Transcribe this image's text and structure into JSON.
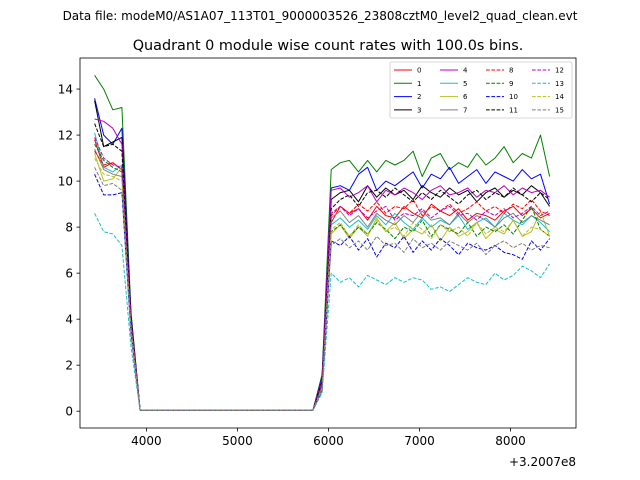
{
  "figure": {
    "suptitle": "Data file: modeM0/AS1A07_113T01_9000003526_23808cztM0_level2_quad_clean.evt"
  },
  "chart_data": {
    "type": "line",
    "title": "Quadrant 0 module wise count rates with 100.0s bins.",
    "xlabel": "",
    "ylabel": "",
    "x_offset_label": "+3.2007e8",
    "x_offset": 320070000,
    "xlim": [
      3270,
      8720
    ],
    "ylim": [
      -0.73,
      15.35
    ],
    "x_ticks": [
      4000,
      5000,
      6000,
      7000,
      8000
    ],
    "y_ticks": [
      0,
      2,
      4,
      6,
      8,
      10,
      12,
      14
    ],
    "grid": false,
    "legend_position": "top-right",
    "x": [
      3430,
      3530,
      3630,
      3730,
      3830,
      3930,
      4030,
      4130,
      4230,
      4330,
      4430,
      4530,
      4630,
      4730,
      4830,
      4930,
      5030,
      5130,
      5230,
      5330,
      5430,
      5530,
      5630,
      5730,
      5830,
      5930,
      6030,
      6130,
      6230,
      6330,
      6430,
      6530,
      6630,
      6730,
      6830,
      6930,
      7030,
      7130,
      7230,
      7330,
      7430,
      7530,
      7630,
      7730,
      7830,
      7930,
      8030,
      8130,
      8230,
      8330,
      8430
    ],
    "series": [
      {
        "name": "0",
        "color": "#ff0000",
        "dash": "solid",
        "values": [
          11.8,
          10.6,
          10.8,
          10.5,
          4.0,
          0.05,
          0.05,
          0.05,
          0.05,
          0.05,
          0.05,
          0.05,
          0.05,
          0.05,
          0.05,
          0.05,
          0.05,
          0.05,
          0.05,
          0.05,
          0.05,
          0.05,
          0.05,
          0.05,
          0.05,
          1.2,
          8.2,
          8.9,
          8.6,
          8.8,
          8.3,
          8.9,
          8.5,
          8.4,
          8.9,
          8.6,
          8.4,
          9.0,
          8.7,
          8.5,
          8.8,
          8.3,
          8.6,
          8.5,
          8.3,
          8.7,
          8.9,
          8.5,
          8.8,
          8.4,
          8.6
        ]
      },
      {
        "name": "1",
        "color": "#008000",
        "dash": "solid",
        "values": [
          14.6,
          14.0,
          13.1,
          13.2,
          4.3,
          0.05,
          0.05,
          0.05,
          0.05,
          0.05,
          0.05,
          0.05,
          0.05,
          0.05,
          0.05,
          0.05,
          0.05,
          0.05,
          0.05,
          0.05,
          0.05,
          0.05,
          0.05,
          0.05,
          0.05,
          1.6,
          10.5,
          10.8,
          10.9,
          10.4,
          10.9,
          10.4,
          10.9,
          10.7,
          10.9,
          11.3,
          10.2,
          11.0,
          11.2,
          10.5,
          10.8,
          10.6,
          11.2,
          10.7,
          11.0,
          11.5,
          10.8,
          11.2,
          11.0,
          12.0,
          10.2
        ]
      },
      {
        "name": "2",
        "color": "#0000ff",
        "dash": "solid",
        "values": [
          13.6,
          12.0,
          11.6,
          12.3,
          4.2,
          0.05,
          0.05,
          0.05,
          0.05,
          0.05,
          0.05,
          0.05,
          0.05,
          0.05,
          0.05,
          0.05,
          0.05,
          0.05,
          0.05,
          0.05,
          0.05,
          0.05,
          0.05,
          0.05,
          0.05,
          1.5,
          9.7,
          9.8,
          9.6,
          10.3,
          10.6,
          9.6,
          10.0,
          9.8,
          10.1,
          10.4,
          9.7,
          10.3,
          10.1,
          10.6,
          9.9,
          10.2,
          10.5,
          9.9,
          10.4,
          10.2,
          10.0,
          10.5,
          10.1,
          10.3,
          9.0
        ]
      },
      {
        "name": "3",
        "color": "#000000",
        "dash": "solid",
        "values": [
          13.5,
          11.5,
          11.7,
          11.9,
          4.1,
          0.05,
          0.05,
          0.05,
          0.05,
          0.05,
          0.05,
          0.05,
          0.05,
          0.05,
          0.05,
          0.05,
          0.05,
          0.05,
          0.05,
          0.05,
          0.05,
          0.05,
          0.05,
          0.05,
          0.05,
          1.4,
          9.2,
          9.5,
          9.6,
          9.1,
          9.8,
          9.3,
          9.7,
          9.4,
          9.6,
          9.2,
          9.8,
          9.5,
          9.3,
          9.7,
          9.4,
          9.6,
          9.1,
          9.5,
          9.7,
          9.3,
          9.6,
          9.4,
          9.8,
          9.5,
          8.9
        ]
      },
      {
        "name": "4",
        "color": "#bf00bf",
        "dash": "solid",
        "values": [
          12.7,
          12.6,
          12.3,
          11.6,
          4.0,
          0.05,
          0.05,
          0.05,
          0.05,
          0.05,
          0.05,
          0.05,
          0.05,
          0.05,
          0.05,
          0.05,
          0.05,
          0.05,
          0.05,
          0.05,
          0.05,
          0.05,
          0.05,
          0.05,
          0.05,
          1.4,
          9.6,
          9.7,
          9.3,
          9.5,
          9.8,
          9.1,
          9.6,
          9.4,
          9.7,
          9.5,
          9.2,
          9.6,
          9.8,
          9.4,
          9.5,
          9.7,
          9.3,
          9.6,
          9.5,
          9.8,
          9.4,
          9.7,
          9.5,
          9.6,
          9.3
        ]
      },
      {
        "name": "5",
        "color": "#17becf",
        "dash": "solid",
        "values": [
          12.1,
          10.6,
          10.4,
          10.7,
          3.7,
          0.05,
          0.05,
          0.05,
          0.05,
          0.05,
          0.05,
          0.05,
          0.05,
          0.05,
          0.05,
          0.05,
          0.05,
          0.05,
          0.05,
          0.05,
          0.05,
          0.05,
          0.05,
          0.05,
          0.05,
          1.1,
          8.1,
          8.4,
          8.0,
          8.3,
          7.9,
          8.5,
          8.1,
          8.6,
          8.2,
          7.9,
          8.4,
          8.0,
          8.3,
          8.1,
          8.5,
          7.9,
          8.2,
          8.4,
          8.0,
          8.6,
          8.3,
          8.1,
          8.5,
          8.2,
          7.8
        ]
      },
      {
        "name": "6",
        "color": "#bcbd22",
        "dash": "solid",
        "values": [
          11.2,
          10.0,
          10.1,
          10.6,
          3.6,
          0.05,
          0.05,
          0.05,
          0.05,
          0.05,
          0.05,
          0.05,
          0.05,
          0.05,
          0.05,
          0.05,
          0.05,
          0.05,
          0.05,
          0.05,
          0.05,
          0.05,
          0.05,
          0.05,
          0.05,
          1.0,
          7.7,
          8.1,
          7.5,
          8.0,
          7.6,
          8.4,
          7.8,
          8.2,
          7.5,
          7.9,
          7.7,
          8.1,
          7.4,
          8.0,
          7.6,
          7.8,
          8.2,
          7.5,
          7.9,
          7.7,
          8.3,
          7.6,
          7.8,
          8.7,
          7.6
        ]
      },
      {
        "name": "7",
        "color": "#7f7f7f",
        "dash": "solid",
        "values": [
          11.4,
          10.5,
          10.3,
          10.2,
          3.6,
          0.05,
          0.05,
          0.05,
          0.05,
          0.05,
          0.05,
          0.05,
          0.05,
          0.05,
          0.05,
          0.05,
          0.05,
          0.05,
          0.05,
          0.05,
          0.05,
          0.05,
          0.05,
          0.05,
          0.05,
          1.0,
          8.4,
          8.7,
          8.2,
          8.5,
          8.0,
          8.6,
          8.3,
          8.1,
          8.5,
          8.2,
          8.7,
          8.3,
          8.4,
          8.1,
          8.6,
          8.2,
          8.5,
          8.3,
          8.0,
          8.4,
          8.6,
          8.2,
          8.5,
          8.3,
          8.1
        ]
      },
      {
        "name": "8",
        "color": "#ff0000",
        "dash": "dashed",
        "values": [
          11.3,
          10.7,
          10.8,
          10.5,
          3.9,
          0.05,
          0.05,
          0.05,
          0.05,
          0.05,
          0.05,
          0.05,
          0.05,
          0.05,
          0.05,
          0.05,
          0.05,
          0.05,
          0.05,
          0.05,
          0.05,
          0.05,
          0.05,
          0.05,
          0.05,
          1.3,
          8.5,
          8.9,
          8.6,
          9.0,
          8.7,
          9.1,
          8.6,
          8.9,
          8.8,
          9.2,
          8.5,
          8.9,
          8.7,
          9.0,
          8.6,
          8.8,
          9.1,
          8.7,
          8.9,
          8.6,
          9.0,
          8.8,
          9.2,
          8.7,
          8.5
        ]
      },
      {
        "name": "9",
        "color": "#008000",
        "dash": "dashed",
        "values": [
          11.6,
          10.9,
          10.6,
          10.4,
          3.8,
          0.05,
          0.05,
          0.05,
          0.05,
          0.05,
          0.05,
          0.05,
          0.05,
          0.05,
          0.05,
          0.05,
          0.05,
          0.05,
          0.05,
          0.05,
          0.05,
          0.05,
          0.05,
          0.05,
          0.05,
          1.1,
          7.8,
          8.1,
          7.6,
          8.0,
          7.7,
          8.2,
          7.9,
          7.5,
          8.0,
          7.8,
          8.3,
          7.6,
          8.1,
          7.9,
          7.7,
          8.2,
          7.6,
          8.0,
          7.8,
          8.1,
          7.7,
          8.3,
          8.9,
          7.9,
          7.6
        ]
      },
      {
        "name": "10",
        "color": "#0000ff",
        "dash": "dashed",
        "values": [
          10.3,
          9.4,
          9.4,
          9.5,
          3.4,
          0.05,
          0.05,
          0.05,
          0.05,
          0.05,
          0.05,
          0.05,
          0.05,
          0.05,
          0.05,
          0.05,
          0.05,
          0.05,
          0.05,
          0.05,
          0.05,
          0.05,
          0.05,
          0.05,
          0.05,
          0.9,
          7.4,
          7.2,
          7.6,
          7.0,
          7.5,
          6.7,
          7.3,
          7.1,
          7.6,
          6.9,
          7.4,
          7.0,
          7.5,
          7.2,
          6.8,
          7.3,
          7.1,
          7.0,
          7.2,
          6.9,
          6.8,
          6.6,
          7.4,
          7.0,
          7.5
        ]
      },
      {
        "name": "11",
        "color": "#000000",
        "dash": "dashed",
        "values": [
          12.5,
          11.5,
          11.6,
          11.3,
          4.0,
          0.05,
          0.05,
          0.05,
          0.05,
          0.05,
          0.05,
          0.05,
          0.05,
          0.05,
          0.05,
          0.05,
          0.05,
          0.05,
          0.05,
          0.05,
          0.05,
          0.05,
          0.05,
          0.05,
          0.05,
          1.3,
          8.8,
          9.2,
          9.4,
          8.9,
          9.5,
          9.6,
          9.3,
          9.7,
          9.4,
          9.1,
          9.5,
          9.2,
          9.6,
          9.3,
          9.0,
          9.4,
          9.6,
          9.2,
          9.5,
          9.3,
          9.7,
          9.4,
          9.1,
          9.5,
          9.2
        ]
      },
      {
        "name": "12",
        "color": "#bf00bf",
        "dash": "dashed",
        "values": [
          11.9,
          11.0,
          10.7,
          10.6,
          3.9,
          0.05,
          0.05,
          0.05,
          0.05,
          0.05,
          0.05,
          0.05,
          0.05,
          0.05,
          0.05,
          0.05,
          0.05,
          0.05,
          0.05,
          0.05,
          0.05,
          0.05,
          0.05,
          0.05,
          0.05,
          1.2,
          8.6,
          8.9,
          8.5,
          8.8,
          8.4,
          8.7,
          8.9,
          8.3,
          8.6,
          8.5,
          8.8,
          8.4,
          8.7,
          8.9,
          8.5,
          8.6,
          8.3,
          8.7,
          8.5,
          8.8,
          8.4,
          8.6,
          8.9,
          8.5,
          8.7
        ]
      },
      {
        "name": "13",
        "color": "#17becf",
        "dash": "dashed",
        "values": [
          8.6,
          7.8,
          7.7,
          7.2,
          2.8,
          0.05,
          0.05,
          0.05,
          0.05,
          0.05,
          0.05,
          0.05,
          0.05,
          0.05,
          0.05,
          0.05,
          0.05,
          0.05,
          0.05,
          0.05,
          0.05,
          0.05,
          0.05,
          0.05,
          0.05,
          0.8,
          6.0,
          5.6,
          5.8,
          5.4,
          5.9,
          5.7,
          5.5,
          5.8,
          5.6,
          5.8,
          5.7,
          5.3,
          5.4,
          5.2,
          5.5,
          5.8,
          5.6,
          5.5,
          6.0,
          5.7,
          5.9,
          6.3,
          6.1,
          5.8,
          6.4
        ]
      },
      {
        "name": "14",
        "color": "#bcbd22",
        "dash": "dashed",
        "values": [
          11.0,
          10.3,
          10.2,
          10.0,
          3.6,
          0.05,
          0.05,
          0.05,
          0.05,
          0.05,
          0.05,
          0.05,
          0.05,
          0.05,
          0.05,
          0.05,
          0.05,
          0.05,
          0.05,
          0.05,
          0.05,
          0.05,
          0.05,
          0.05,
          0.05,
          1.0,
          7.9,
          8.2,
          7.6,
          8.1,
          7.7,
          8.3,
          7.8,
          8.0,
          7.6,
          8.2,
          7.9,
          7.5,
          8.1,
          7.8,
          8.0,
          7.6,
          8.2,
          7.7,
          8.0,
          7.8,
          8.3,
          7.6,
          8.0,
          7.9,
          7.6
        ]
      },
      {
        "name": "15",
        "color": "#7f7f7f",
        "dash": "dashed",
        "values": [
          10.6,
          9.8,
          9.9,
          9.6,
          3.3,
          0.05,
          0.05,
          0.05,
          0.05,
          0.05,
          0.05,
          0.05,
          0.05,
          0.05,
          0.05,
          0.05,
          0.05,
          0.05,
          0.05,
          0.05,
          0.05,
          0.05,
          0.05,
          0.05,
          0.05,
          0.9,
          7.2,
          7.5,
          7.1,
          7.4,
          7.0,
          7.6,
          7.2,
          7.3,
          6.9,
          7.5,
          7.1,
          7.3,
          7.0,
          7.4,
          7.2,
          7.0,
          7.3,
          6.8,
          7.2,
          7.4,
          7.1,
          7.3,
          7.0,
          7.2,
          7.1
        ]
      }
    ]
  }
}
